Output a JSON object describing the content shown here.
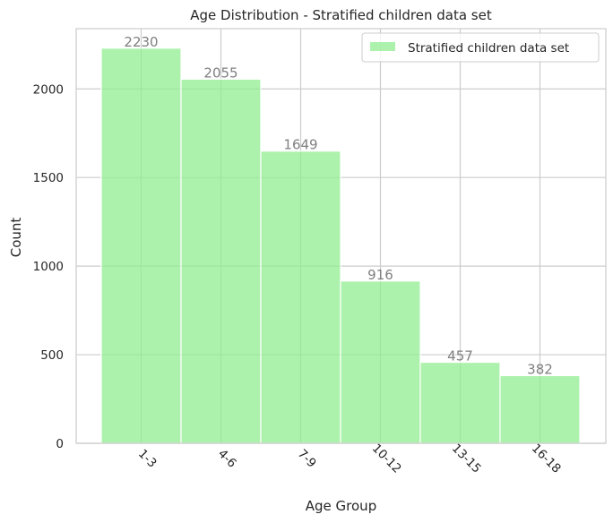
{
  "chart_data": {
    "type": "bar",
    "title": "Age Distribution - Stratified children data set",
    "xlabel": "Age Group",
    "ylabel": "Count",
    "categories": [
      "1-3",
      "4-6",
      "7-9",
      "10-12",
      "13-15",
      "16-18"
    ],
    "series": [
      {
        "name": "Stratified children data set",
        "values": [
          2230,
          2055,
          1649,
          916,
          457,
          382
        ],
        "color": "#90ee90"
      }
    ],
    "ylim": [
      0,
      2340
    ],
    "yticks": [
      0,
      500,
      1000,
      1500,
      2000
    ],
    "grid": true,
    "legend_position": "top-right",
    "tick_label_rotation": -45,
    "data_label_color": "#7f7f7f"
  }
}
